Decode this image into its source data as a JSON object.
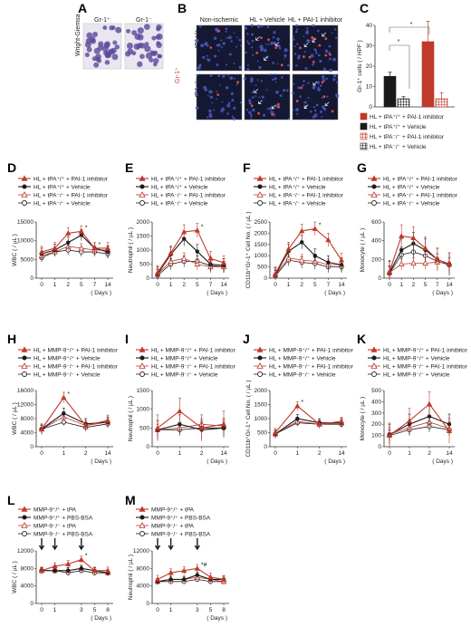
{
  "panel_letters": [
    "A",
    "B",
    "C",
    "D",
    "E",
    "F",
    "G",
    "H",
    "I",
    "J",
    "K",
    "L",
    "M"
  ],
  "panel_a": {
    "side_label": "Wright-Giemsa",
    "labels": [
      "Gr-1⁺",
      "Gr-1⁻"
    ]
  },
  "panel_b": {
    "columns": [
      "Non-ischemic",
      "HL + Vehicle",
      "HL + PAI-1 inhibitor"
    ],
    "rows": [
      "tPA⁺/⁺",
      "tPA⁻/⁻"
    ],
    "side_label": "Gr-1⁺"
  },
  "legend_tpa": [
    "HL + tPA⁺/⁺ + PAI-1 inhibitor",
    "HL + tPA⁺/⁺ + Vehicle",
    "HL + tPA⁻/⁻ + PAI-1 inhibitor",
    "HL + tPA⁻/⁻ + Vehicle"
  ],
  "legend_mmp": [
    "HL + MMP-9⁺/⁺ + PAI-1 inhibitor",
    "HL + MMP-9⁺/⁺ + Vehicle",
    "HL + MMP-9⁻/⁻ + PAI-1 inhibitor",
    "HL + MMP-9⁻/⁻ + Vehicle"
  ],
  "legend_lm": [
    "MMP-9⁺/⁺ + tPA",
    "MMP-9⁺/⁺ + PBS-BSA",
    "MMP-9⁻/⁻ + tPA",
    "MMP-9⁻/⁻ + PBS-BSA"
  ],
  "days_label": "( Days )",
  "chart_data": [
    {
      "panel": "C",
      "type": "bar",
      "ylabel": "Gr-1⁺ cells ( / HPF )",
      "ylim": [
        0,
        40
      ],
      "yticks": [
        0,
        10,
        20,
        30,
        40
      ],
      "categories": [
        "HL + tPA⁺/⁺ + PAI-1 inhibitor",
        "HL + tPA⁺/⁺ + Vehicle",
        "HL + tPA⁻/⁻ + PAI-1 inhibitor",
        "HL + tPA⁻/⁻ + Vehicle"
      ],
      "groups": [
        {
          "bars": [
            {
              "series": 1,
              "value": 15,
              "err": 2
            },
            {
              "series": 3,
              "value": 4,
              "err": 1
            }
          ]
        },
        {
          "bars": [
            {
              "series": 0,
              "value": 32,
              "err": 10
            },
            {
              "series": 2,
              "value": 4,
              "err": 3
            }
          ]
        }
      ],
      "annotations": [
        "*",
        "*"
      ]
    },
    {
      "panel": "D",
      "type": "line",
      "ylabel": "WBC ( / µL )",
      "x": [
        0,
        1,
        2,
        5,
        7,
        14
      ],
      "xticks": [
        "0",
        "1",
        "2",
        "5",
        "7",
        "14"
      ],
      "ylim": [
        0,
        15000
      ],
      "yticks": [
        0,
        5000,
        10000,
        15000
      ],
      "series": [
        {
          "values": [
            7000,
            8000,
            12000,
            12500,
            8000,
            8000
          ],
          "err": 1500
        },
        {
          "values": [
            6500,
            7500,
            9500,
            11500,
            8000,
            7000
          ],
          "err": 1500
        },
        {
          "values": [
            6000,
            7000,
            8500,
            8000,
            7500,
            7500
          ],
          "err": 1200
        },
        {
          "values": [
            5500,
            7000,
            7500,
            7000,
            7000,
            6500
          ],
          "err": 1200
        }
      ],
      "annotations": [
        "*",
        "*"
      ]
    },
    {
      "panel": "E",
      "type": "line",
      "ylabel": "Neutrophil ( / µL )",
      "x": [
        0,
        1,
        2,
        5,
        7,
        14
      ],
      "xticks": [
        "0",
        "1",
        "2",
        "5",
        "7",
        "14"
      ],
      "ylim": [
        0,
        2000
      ],
      "yticks": [
        0,
        500,
        1000,
        1500,
        2000
      ],
      "series": [
        {
          "values": [
            200,
            900,
            1650,
            1700,
            700,
            550
          ],
          "err": 250
        },
        {
          "values": [
            150,
            850,
            1400,
            950,
            500,
            450
          ],
          "err": 250
        },
        {
          "values": [
            150,
            600,
            700,
            500,
            400,
            400
          ],
          "err": 200
        },
        {
          "values": [
            100,
            500,
            600,
            600,
            450,
            400
          ],
          "err": 200
        }
      ],
      "annotations": [
        "*"
      ]
    },
    {
      "panel": "F",
      "type": "line",
      "ylabel": "CD11b⁺Gr-1⁺ Cell No. ( / µL )",
      "x": [
        0,
        1,
        2,
        5,
        7,
        14
      ],
      "xticks": [
        "0",
        "1",
        "2",
        "5",
        "7",
        "14"
      ],
      "ylim": [
        0,
        2500
      ],
      "yticks": [
        0,
        500,
        1000,
        1500,
        2000,
        2500
      ],
      "series": [
        {
          "values": [
            200,
            1300,
            2100,
            2200,
            1700,
            800
          ],
          "err": 300
        },
        {
          "values": [
            150,
            1200,
            1600,
            1000,
            700,
            600
          ],
          "err": 300
        },
        {
          "values": [
            150,
            900,
            800,
            750,
            600,
            600
          ],
          "err": 250
        },
        {
          "values": [
            100,
            800,
            700,
            650,
            500,
            500
          ],
          "err": 250
        }
      ],
      "annotations": [
        "*"
      ]
    },
    {
      "panel": "G",
      "type": "line",
      "ylabel": "Monocyte ( / µL )",
      "x": [
        0,
        1,
        2,
        5,
        7,
        14
      ],
      "xticks": [
        "0",
        "1",
        "2",
        "5",
        "7",
        "14"
      ],
      "ylim": [
        0,
        600
      ],
      "yticks": [
        0,
        200,
        400,
        600
      ],
      "series": [
        {
          "values": [
            70,
            450,
            430,
            320,
            200,
            150
          ],
          "err": 120
        },
        {
          "values": [
            60,
            300,
            370,
            300,
            200,
            150
          ],
          "err": 120
        },
        {
          "values": [
            60,
            150,
            160,
            160,
            170,
            160
          ],
          "err": 60
        },
        {
          "values": [
            50,
            250,
            280,
            240,
            180,
            140
          ],
          "err": 80
        }
      ]
    },
    {
      "panel": "H",
      "type": "line",
      "ylabel": "WBC ( / µL )",
      "x": [
        0,
        1,
        2,
        14
      ],
      "xticks": [
        "0",
        "1",
        "2",
        "14"
      ],
      "ylim": [
        0,
        16000
      ],
      "yticks": [
        0,
        4000,
        8000,
        12000,
        16000
      ],
      "series": [
        {
          "values": [
            5000,
            14000,
            6000,
            7500
          ],
          "err": 1500
        },
        {
          "values": [
            5000,
            9500,
            6500,
            7000
          ],
          "err": 1500
        },
        {
          "values": [
            5000,
            8500,
            6000,
            7000
          ],
          "err": 1200
        },
        {
          "values": [
            5000,
            7000,
            5500,
            6500
          ],
          "err": 1000
        }
      ],
      "annotations": [
        "*"
      ]
    },
    {
      "panel": "I",
      "type": "line",
      "ylabel": "Neutrophil ( / µL )",
      "x": [
        0,
        1,
        2,
        14
      ],
      "xticks": [
        "0",
        "1",
        "2",
        "14"
      ],
      "ylim": [
        0,
        1500
      ],
      "yticks": [
        0,
        500,
        1000,
        1500
      ],
      "series": [
        {
          "values": [
            500,
            950,
            500,
            600
          ],
          "err": 350
        },
        {
          "values": [
            450,
            600,
            450,
            500
          ],
          "err": 250
        },
        {
          "values": [
            450,
            500,
            600,
            550
          ],
          "err": 150
        },
        {
          "values": [
            450,
            450,
            500,
            500
          ],
          "err": 150
        }
      ]
    },
    {
      "panel": "J",
      "type": "line",
      "ylabel": "CD11b⁺Gr-1⁺ Cell No. ( / µL )",
      "x": [
        0,
        1,
        2,
        14
      ],
      "xticks": [
        "0",
        "1",
        "2",
        "14"
      ],
      "ylim": [
        0,
        2000
      ],
      "yticks": [
        0,
        500,
        1000,
        1500,
        2000
      ],
      "series": [
        {
          "values": [
            500,
            1450,
            800,
            900
          ],
          "err": 150
        },
        {
          "values": [
            450,
            1000,
            850,
            850
          ],
          "err": 150
        },
        {
          "values": [
            450,
            900,
            800,
            850
          ],
          "err": 120
        },
        {
          "values": [
            450,
            850,
            800,
            800
          ],
          "err": 120
        }
      ],
      "annotations": [
        "*"
      ]
    },
    {
      "panel": "K",
      "type": "line",
      "ylabel": "Monocyte ( / µL )",
      "x": [
        0,
        1,
        2,
        14
      ],
      "xticks": [
        "0",
        "1",
        "2",
        "14"
      ],
      "ylim": [
        0,
        500
      ],
      "yticks": [
        0,
        100,
        200,
        300,
        400,
        500
      ],
      "series": [
        {
          "values": [
            100,
            230,
            380,
            140
          ],
          "err": 110
        },
        {
          "values": [
            110,
            200,
            270,
            200
          ],
          "err": 90
        },
        {
          "values": [
            110,
            170,
            220,
            160
          ],
          "err": 60
        },
        {
          "values": [
            100,
            150,
            180,
            150
          ],
          "err": 50
        }
      ]
    },
    {
      "panel": "L",
      "type": "line",
      "ylabel": "WBC ( / µL )",
      "x": [
        0,
        1,
        2,
        3,
        5,
        8
      ],
      "xticks": [
        "0",
        "1",
        "3",
        "5",
        "8"
      ],
      "ylim": [
        0,
        12000
      ],
      "yticks": [
        0,
        4000,
        8000,
        12000
      ],
      "arrows_at": [
        0,
        1,
        3
      ],
      "series": [
        {
          "values": [
            7500,
            8500,
            9000,
            10000,
            7500,
            7500
          ],
          "err": 800
        },
        {
          "values": [
            7500,
            7500,
            7500,
            8000,
            7500,
            7000
          ],
          "err": 700
        },
        {
          "values": [
            7500,
            7500,
            7500,
            8000,
            7500,
            7000
          ],
          "err": 700
        },
        {
          "values": [
            7500,
            7500,
            7000,
            7500,
            7000,
            7000
          ],
          "err": 600
        }
      ],
      "annotations": [
        "*"
      ]
    },
    {
      "panel": "M",
      "type": "line",
      "ylabel": "Neutrophil ( / µL )",
      "x": [
        0,
        1,
        2,
        3,
        5,
        8
      ],
      "xticks": [
        "0",
        "1",
        "3",
        "5",
        "8"
      ],
      "ylim": [
        0,
        12000
      ],
      "yticks": [
        0,
        4000,
        8000,
        12000
      ],
      "arrows_at": [
        0,
        1,
        3
      ],
      "series": [
        {
          "values": [
            5500,
            7000,
            7500,
            8000,
            6000,
            5500
          ],
          "err": 900
        },
        {
          "values": [
            5000,
            5500,
            5500,
            6500,
            5500,
            5500
          ],
          "err": 700
        },
        {
          "values": [
            5000,
            5500,
            5500,
            6000,
            5500,
            5000
          ],
          "err": 700
        },
        {
          "values": [
            5000,
            5000,
            5000,
            5500,
            5000,
            5000
          ],
          "err": 600
        }
      ],
      "annotations": [
        "*#"
      ]
    }
  ],
  "colors": {
    "red": "#c0392b",
    "black": "#1a1a1a",
    "axis": "#333333"
  }
}
